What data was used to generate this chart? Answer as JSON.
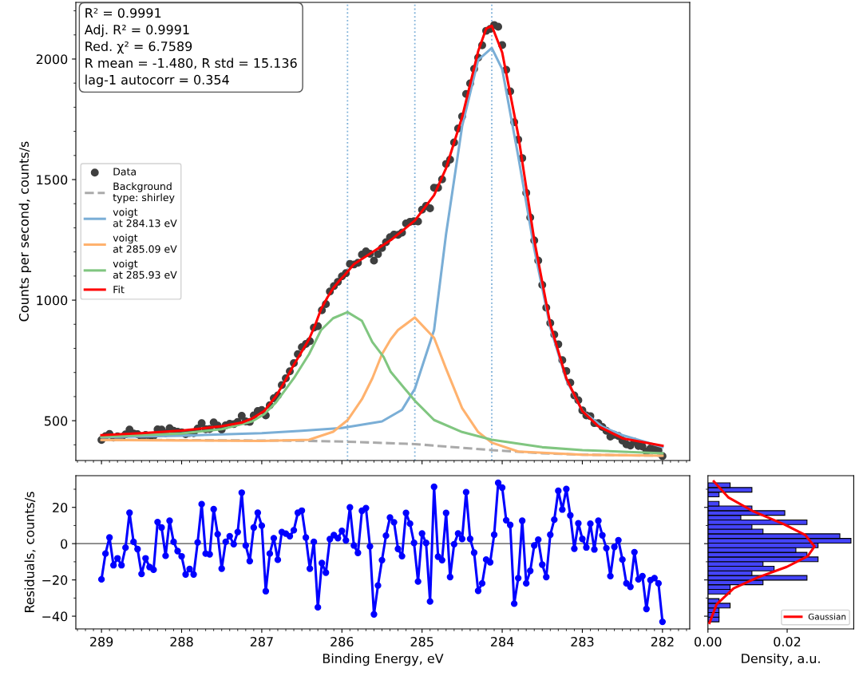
{
  "chart_data": [
    {
      "type": "scatter",
      "ylabel": "Counts per second, counts/s",
      "xlim": [
        289.32,
        281.66
      ],
      "xticks": [
        289,
        288,
        287,
        286,
        285,
        284,
        283,
        282
      ],
      "ylim": [
        335,
        2235
      ],
      "yticks": [
        500,
        1000,
        1500,
        2000
      ],
      "tick_labels": "y",
      "legend": "left",
      "annotations": [
        "R² = 0.9991",
        "Adj. R² = 0.9991",
        "Red. χ² = 6.7589",
        "R mean = -1.480, R std = 15.136",
        "lag-1 autocorr = 0.354"
      ],
      "ref_lines": [
        {
          "axis": "x",
          "value": 285.93,
          "color": "#7fb1d9",
          "line_style": "dotted"
        },
        {
          "axis": "x",
          "value": 285.09,
          "color": "#7fb1d9",
          "line_style": "dotted"
        },
        {
          "axis": "x",
          "value": 284.13,
          "color": "#7fb1d9",
          "line_style": "dotted"
        }
      ],
      "series": [
        {
          "name": "Data",
          "type": "scatter",
          "color": "#3f3f3f",
          "marker": "circle",
          "x": [
            289.0,
            288.95,
            288.9,
            288.85,
            288.8,
            288.75,
            288.7,
            288.65,
            288.6,
            288.55,
            288.5,
            288.45,
            288.4,
            288.35,
            288.3,
            288.25,
            288.2,
            288.15,
            288.1,
            288.05,
            288.0,
            287.95,
            287.9,
            287.85,
            287.8,
            287.75,
            287.7,
            287.65,
            287.6,
            287.55,
            287.5,
            287.45,
            287.4,
            287.35,
            287.3,
            287.25,
            287.2,
            287.15,
            287.1,
            287.05,
            287.0,
            286.95,
            286.9,
            286.85,
            286.8,
            286.75,
            286.7,
            286.65,
            286.6,
            286.55,
            286.5,
            286.45,
            286.4,
            286.35,
            286.3,
            286.25,
            286.2,
            286.15,
            286.1,
            286.05,
            286.0,
            285.95,
            285.9,
            285.85,
            285.8,
            285.75,
            285.7,
            285.65,
            285.6,
            285.55,
            285.5,
            285.45,
            285.4,
            285.35,
            285.3,
            285.25,
            285.2,
            285.15,
            285.1,
            285.05,
            285.0,
            284.95,
            284.9,
            284.85,
            284.8,
            284.75,
            284.7,
            284.65,
            284.6,
            284.55,
            284.5,
            284.45,
            284.4,
            284.35,
            284.3,
            284.25,
            284.2,
            284.15,
            284.1,
            284.05,
            284.0,
            283.95,
            283.9,
            283.85,
            283.8,
            283.75,
            283.7,
            283.65,
            283.6,
            283.55,
            283.5,
            283.45,
            283.4,
            283.35,
            283.3,
            283.25,
            283.2,
            283.15,
            283.1,
            283.05,
            283.0,
            282.95,
            282.9,
            282.85,
            282.8,
            282.75,
            282.7,
            282.65,
            282.6,
            282.55,
            282.5,
            282.45,
            282.4,
            282.35,
            282.3,
            282.25,
            282.2,
            282.15,
            282.1,
            282.05,
            282.0
          ],
          "values": [
            420,
            436,
            445,
            430,
            435,
            432,
            443,
            463,
            447,
            444,
            431,
            441,
            437,
            437,
            464,
            463,
            448,
            469,
            458,
            454,
            452,
            444,
            449,
            448,
            467,
            490,
            465,
            466,
            493,
            480,
            463,
            481,
            487,
            486,
            495,
            520,
            497,
            495,
            522,
            540,
            544,
            522,
            564,
            593,
            605,
            648,
            676,
            705,
            739,
            776,
            805,
            818,
            830,
            886,
            892,
            958,
            984,
            1036,
            1058,
            1076,
            1099,
            1112,
            1150,
            1148,
            1155,
            1189,
            1202,
            1192,
            1164,
            1191,
            1216,
            1240,
            1261,
            1272,
            1271,
            1280,
            1318,
            1325,
            1327,
            1326,
            1375,
            1391,
            1381,
            1466,
            1466,
            1501,
            1565,
            1583,
            1654,
            1712,
            1762,
            1855,
            1899,
            1959,
            2006,
            2057,
            2117,
            2125,
            2141,
            2134,
            2058,
            1955,
            1866,
            1738,
            1666,
            1589,
            1445,
            1343,
            1248,
            1164,
            1063,
            969,
            905,
            857,
            817,
            751,
            706,
            658,
            605,
            585,
            543,
            522,
            519,
            490,
            490,
            474,
            458,
            434,
            442,
            437,
            418,
            402,
            397,
            413,
            395,
            393,
            372,
            385,
            383,
            377,
            353
          ]
        },
        {
          "name": "Background\ntype: shirley",
          "type": "line",
          "line_style": "dashed",
          "color": "#aaaaaa",
          "x": [
            289,
            286.5,
            285.93,
            285.09,
            284.13,
            283.5,
            283,
            282
          ],
          "values": [
            421,
            417,
            413,
            403,
            378,
            365,
            359,
            355
          ]
        },
        {
          "name": "voigt\nat 284.13 eV",
          "type": "line",
          "color": "#7aaed6",
          "x": [
            289,
            288,
            287,
            286.5,
            286,
            285.5,
            285.25,
            285.09,
            284.85,
            284.7,
            284.5,
            284.3,
            284.13,
            284,
            283.8,
            283.6,
            283.4,
            283.2,
            283,
            282.75,
            282.5,
            282
          ],
          "values": [
            432,
            438,
            448,
            458,
            470,
            497,
            545,
            632,
            876,
            1275,
            1721,
            1996,
            2046,
            1958,
            1597,
            1212,
            887,
            670,
            540,
            475,
            440,
            391
          ]
        },
        {
          "name": "voigt\nat 285.09 eV",
          "type": "line",
          "color": "#ffb26e",
          "x": [
            289,
            288,
            287,
            286.41,
            286.11,
            285.93,
            285.75,
            285.62,
            285.5,
            285.39,
            285.3,
            285.09,
            284.85,
            284.7,
            284.5,
            284.3,
            284.13,
            283.8,
            283,
            282
          ],
          "values": [
            420,
            418,
            416,
            421,
            454,
            502,
            589,
            676,
            776,
            838,
            876,
            928,
            844,
            715,
            552,
            453,
            409,
            372,
            359,
            355
          ]
        },
        {
          "name": "voigt\nat 285.93 eV",
          "type": "line",
          "color": "#80c680",
          "x": [
            289,
            288,
            287.5,
            287.12,
            286.97,
            286.82,
            286.6,
            286.41,
            286.26,
            286.11,
            285.93,
            285.75,
            285.62,
            285.48,
            285.39,
            285.09,
            284.85,
            284.5,
            284.13,
            283.5,
            283,
            282
          ],
          "values": [
            434,
            447,
            465,
            497,
            527,
            577,
            676,
            776,
            876,
            925,
            950,
            914,
            826,
            765,
            702,
            583,
            503,
            453,
            421,
            390,
            378,
            365
          ]
        },
        {
          "name": "Fit",
          "type": "line",
          "color": "#ff0000",
          "x": [
            289.0,
            288.5,
            288.0,
            287.5,
            287.25,
            287.12,
            286.97,
            286.82,
            286.71,
            286.6,
            286.52,
            286.41,
            286.33,
            286.26,
            286.18,
            286.11,
            286.03,
            285.96,
            285.85,
            285.62,
            285.39,
            285.09,
            284.85,
            284.7,
            284.5,
            284.3,
            284.2,
            284.13,
            284.0,
            283.8,
            283.6,
            283.4,
            283.2,
            283.0,
            282.8,
            282.5,
            282.0
          ],
          "values": [
            440,
            448,
            459,
            477,
            492,
            509,
            540,
            603,
            664,
            732,
            776,
            838,
            900,
            963,
            1012,
            1049,
            1081,
            1106,
            1149,
            1199,
            1249,
            1330,
            1435,
            1548,
            1759,
            2032,
            2126,
            2138,
            2027,
            1685,
            1249,
            900,
            676,
            540,
            477,
            427,
            396
          ]
        }
      ]
    },
    {
      "type": "line",
      "xlabel": "Binding Energy, eV",
      "ylabel": "Residuals, counts/s",
      "xlim": [
        289.32,
        281.66
      ],
      "xticks": [
        289,
        288,
        287,
        286,
        285,
        284,
        283,
        282
      ],
      "ylim": [
        -47,
        37.5
      ],
      "yticks": [
        {
          "value": -40,
          "label": "−40"
        },
        {
          "value": -20,
          "label": "−20"
        },
        0,
        20
      ],
      "color": "#0000ff",
      "marker": "circle",
      "ref_lines": [
        {
          "axis": "y",
          "value": 0,
          "color": "#808080",
          "line_style": "solid"
        }
      ],
      "x": [
        289.0,
        288.95,
        288.9,
        288.85,
        288.8,
        288.75,
        288.7,
        288.65,
        288.6,
        288.55,
        288.5,
        288.45,
        288.4,
        288.35,
        288.3,
        288.25,
        288.2,
        288.15,
        288.1,
        288.05,
        288.0,
        287.95,
        287.9,
        287.85,
        287.8,
        287.75,
        287.7,
        287.65,
        287.6,
        287.55,
        287.5,
        287.45,
        287.4,
        287.35,
        287.3,
        287.25,
        287.2,
        287.15,
        287.1,
        287.05,
        287.0,
        286.95,
        286.9,
        286.85,
        286.8,
        286.75,
        286.7,
        286.65,
        286.6,
        286.55,
        286.5,
        286.45,
        286.4,
        286.35,
        286.3,
        286.25,
        286.2,
        286.15,
        286.1,
        286.05,
        286.0,
        285.95,
        285.9,
        285.85,
        285.8,
        285.75,
        285.7,
        285.65,
        285.6,
        285.55,
        285.5,
        285.45,
        285.4,
        285.35,
        285.3,
        285.25,
        285.2,
        285.15,
        285.1,
        285.05,
        285.0,
        284.95,
        284.9,
        284.85,
        284.8,
        284.75,
        284.7,
        284.65,
        284.6,
        284.55,
        284.5,
        284.45,
        284.4,
        284.35,
        284.3,
        284.25,
        284.2,
        284.15,
        284.1,
        284.05,
        284.0,
        283.95,
        283.9,
        283.85,
        283.8,
        283.75,
        283.7,
        283.65,
        283.6,
        283.55,
        283.5,
        283.45,
        283.4,
        283.35,
        283.3,
        283.25,
        283.2,
        283.15,
        283.1,
        283.05,
        283.0,
        282.95,
        282.9,
        282.85,
        282.8,
        282.75,
        282.7,
        282.65,
        282.6,
        282.55,
        282.5,
        282.45,
        282.4,
        282.35,
        282.3,
        282.25,
        282.2,
        282.15,
        282.1,
        282.05,
        282.0
      ],
      "values": [
        -19.7,
        -5.5,
        3.4,
        -11.9,
        -8.1,
        -11.9,
        -2.2,
        17,
        1,
        -3,
        -16.7,
        -8.1,
        -12.9,
        -14.4,
        11.9,
        8.9,
        -6.7,
        12.6,
        1,
        -4.1,
        -7,
        -17,
        -14,
        -17,
        0.7,
        21.8,
        -5.5,
        -5.9,
        19,
        5.2,
        -13.8,
        1,
        4.1,
        -0.3,
        6.4,
        28.1,
        -1,
        -9.6,
        8.9,
        17,
        9.9,
        -26.2,
        -5.5,
        3,
        -8.9,
        6.4,
        5.5,
        4.1,
        7.4,
        17,
        18.2,
        3.4,
        -13.8,
        1,
        -35.1,
        -10.7,
        -16,
        2.5,
        4.7,
        3,
        7,
        1.8,
        20,
        -1.0,
        -5.1,
        18.1,
        19.6,
        -1.5,
        -39.0,
        -23.1,
        -9.1,
        4.4,
        14.4,
        11.8,
        -2.9,
        -6.9,
        16.9,
        11.0,
        0.4,
        -20.9,
        5.6,
        0.4,
        -31.9,
        31.3,
        -7.2,
        -9.1,
        16.9,
        -18.4,
        -0.3,
        5.6,
        2.6,
        28.4,
        2.6,
        -5.0,
        -26.0,
        -21.9,
        -8.8,
        -10.3,
        4.9,
        33.5,
        30.9,
        12.9,
        10.3,
        -33.1,
        -19.0,
        12.6,
        -21.9,
        -15.0,
        -1.0,
        2.2,
        -11.6,
        -18.4,
        4.9,
        13.2,
        29.1,
        18.8,
        30.1,
        15.6,
        -2.8,
        11.2,
        2.6,
        -2.1,
        11.0,
        -3.2,
        12.6,
        4.6,
        -2.5,
        -17.9,
        -1.8,
        1.9,
        -8.8,
        -21.9,
        -23.8,
        -4.7,
        -19.7,
        -17.9,
        -36.0,
        -20.1,
        -19.0,
        -21.9,
        -43.1
      ]
    },
    {
      "type": "histogram",
      "orientation": "horizontal",
      "xlabel": "Density, a.u.",
      "xlim": [
        0,
        0.0368
      ],
      "xticks": [
        {
          "value": 0,
          "label": "0.00"
        },
        {
          "value": 0.02,
          "label": "0.02"
        }
      ],
      "ylim": [
        -47,
        37.5
      ],
      "yticks": [
        {
          "value": -40,
          "label": null
        },
        {
          "value": -20,
          "label": null
        },
        {
          "value": 0,
          "label": null
        },
        {
          "value": 20,
          "label": null
        }
      ],
      "tick_labels": "x",
      "color": "#4444f8",
      "legend": "bottom right",
      "bins": [
        -43.1,
        -40.55,
        -37.99,
        -35.44,
        -32.89,
        -30.33,
        -27.78,
        -25.23,
        -22.67,
        -20.12,
        -17.57,
        -15.01,
        -12.46,
        -9.91,
        -7.35,
        -4.8,
        -2.25,
        0.31,
        2.86,
        5.41,
        7.97,
        10.52,
        13.07,
        15.63,
        18.18,
        20.73,
        23.29,
        25.84,
        28.39,
        30.95,
        33.5
      ],
      "values": [
        0.0028,
        0.0028,
        0.0028,
        0.0056,
        0.0028,
        0,
        0.0056,
        0.0056,
        0.0139,
        0.025,
        0.0111,
        0.0167,
        0.0139,
        0.0278,
        0.025,
        0.0222,
        0.0278,
        0.0361,
        0.0333,
        0.0139,
        0.0111,
        0.025,
        0.0083,
        0.0194,
        0.0111,
        0.0028,
        0,
        0.0028,
        0.0111,
        0.0056
      ],
      "series": [
        {
          "name": "Gaussian",
          "type": "line",
          "color": "#ff0000",
          "x": [
            34.3,
            25.4,
            18.1,
            10.7,
            4.9,
            -1.5,
            -6.9,
            -12.8,
            -18.7,
            -24.6,
            -33.4,
            -43.7
          ],
          "values": [
            0.0015,
            0.0052,
            0.0112,
            0.0192,
            0.0245,
            0.0269,
            0.0252,
            0.0199,
            0.0125,
            0.0065,
            0.0022,
            0.0004
          ]
        }
      ]
    }
  ]
}
